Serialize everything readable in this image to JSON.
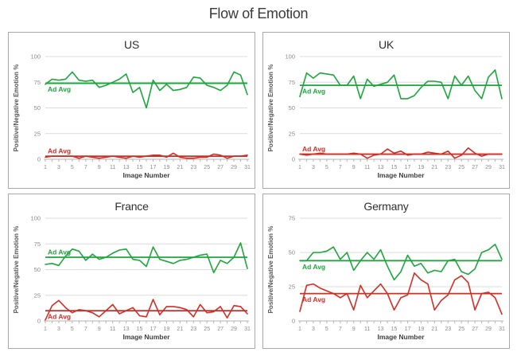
{
  "page_title": "Flow of Emotion",
  "colors": {
    "positive": "#1ea63c",
    "negative": "#d02e26",
    "grid": "#dcdcdc",
    "axis_line": "#b3b3b3",
    "tick_text": "#8a8a8a",
    "axis_label_text": "#3d3d3d",
    "ylabel_text": "#595959"
  },
  "chart_data": [
    {
      "type": "line",
      "title": "US",
      "xlabel": "Image Number",
      "ylabel": "Positive/Negative Emotion %",
      "ylim": [
        0,
        100
      ],
      "yticks": [
        0,
        25,
        50,
        75,
        100
      ],
      "xticks": [
        1,
        3,
        5,
        7,
        9,
        11,
        13,
        15,
        17,
        19,
        21,
        23,
        25,
        27,
        29,
        31
      ],
      "x_range": [
        1,
        31
      ],
      "grid": "horizontal",
      "legend_position": "none",
      "series": [
        {
          "name": "Positive",
          "color_key": "positive",
          "values": [
            73,
            78,
            77,
            78,
            85,
            77,
            76,
            77,
            70,
            72,
            75,
            78,
            83,
            65,
            70,
            50,
            77,
            67,
            73,
            67,
            68,
            70,
            80,
            79,
            72,
            70,
            67,
            72,
            85,
            82,
            63
          ],
          "avg": 74,
          "avg_label": "Ad Avg",
          "avg_label_side": "below"
        },
        {
          "name": "Negative",
          "color_key": "negative",
          "values": [
            2,
            3,
            3,
            3,
            3,
            1,
            3,
            2,
            1,
            2,
            3,
            2,
            1,
            3,
            2,
            3,
            4,
            4,
            2,
            6,
            2,
            1,
            1,
            2,
            2,
            5,
            4,
            1,
            3,
            3,
            4
          ],
          "avg": 3,
          "avg_label": "Ad Avg",
          "avg_label_side": "above"
        }
      ]
    },
    {
      "type": "line",
      "title": "UK",
      "xlabel": "Image Number",
      "ylabel": "Positive/Negative Emotion %",
      "ylim": [
        0,
        100
      ],
      "yticks": [
        0,
        25,
        50,
        75,
        100
      ],
      "xticks": [
        1,
        3,
        5,
        7,
        9,
        11,
        13,
        15,
        17,
        19,
        21,
        23,
        25,
        27,
        29,
        31
      ],
      "x_range": [
        1,
        31
      ],
      "grid": "horizontal",
      "legend_position": "none",
      "series": [
        {
          "name": "Positive",
          "color_key": "positive",
          "values": [
            61,
            84,
            79,
            84,
            83,
            82,
            72,
            72,
            81,
            59,
            78,
            71,
            73,
            75,
            82,
            59,
            59,
            62,
            70,
            76,
            76,
            75,
            59,
            81,
            72,
            81,
            67,
            59,
            80,
            87,
            59
          ],
          "avg": 72,
          "avg_label": "Ad Avg",
          "avg_label_side": "below"
        },
        {
          "name": "Negative",
          "color_key": "negative",
          "values": [
            5,
            4,
            5,
            6,
            5,
            5,
            5,
            5,
            6,
            5,
            1,
            4,
            5,
            10,
            6,
            8,
            4,
            5,
            5,
            7,
            6,
            5,
            8,
            1,
            4,
            11,
            6,
            3,
            5,
            5,
            5
          ],
          "avg": 5,
          "avg_label": "Ad Avg",
          "avg_label_side": "above"
        }
      ]
    },
    {
      "type": "line",
      "title": "France",
      "xlabel": "Image Number",
      "ylabel": "Positive/Negative Emotion %",
      "ylim": [
        0,
        100
      ],
      "yticks": [
        0,
        25,
        50,
        75,
        100
      ],
      "xticks": [
        1,
        3,
        5,
        7,
        9,
        11,
        13,
        15,
        17,
        19,
        21,
        23,
        25,
        27,
        29,
        31
      ],
      "x_range": [
        1,
        31
      ],
      "grid": "horizontal",
      "legend_position": "none",
      "series": [
        {
          "name": "Positive",
          "color_key": "positive",
          "values": [
            55,
            56,
            54,
            63,
            70,
            68,
            59,
            65,
            60,
            62,
            66,
            69,
            70,
            60,
            59,
            53,
            72,
            60,
            58,
            56,
            59,
            60,
            62,
            64,
            65,
            47,
            59,
            56,
            62,
            76,
            51
          ],
          "avg": 62,
          "avg_label": "Ad Avg",
          "avg_label_side": "above"
        },
        {
          "name": "Negative",
          "color_key": "negative",
          "values": [
            1,
            15,
            20,
            13,
            8,
            11,
            10,
            8,
            4,
            10,
            16,
            7,
            10,
            13,
            5,
            4,
            21,
            6,
            14,
            14,
            13,
            11,
            4,
            16,
            8,
            9,
            14,
            3,
            15,
            14,
            7
          ],
          "avg": 10,
          "avg_label": "Ad Avg",
          "avg_label_side": "below"
        }
      ]
    },
    {
      "type": "line",
      "title": "Germany",
      "xlabel": "Image Number",
      "ylabel": "Positive/Negative Emotion %",
      "ylim": [
        0,
        75
      ],
      "yticks": [
        0,
        25,
        50,
        75
      ],
      "xticks": [
        1,
        3,
        5,
        7,
        9,
        11,
        13,
        15,
        17,
        19,
        21,
        23,
        25,
        27,
        29,
        31
      ],
      "x_range": [
        1,
        31
      ],
      "grid": "horizontal",
      "legend_position": "none",
      "series": [
        {
          "name": "Positive",
          "color_key": "positive",
          "values": [
            44,
            44,
            50,
            50,
            51,
            54,
            45,
            50,
            37,
            44,
            50,
            45,
            52,
            40,
            30,
            36,
            48,
            40,
            42,
            35,
            37,
            36,
            44,
            45,
            36,
            34,
            38,
            50,
            52,
            56,
            45
          ],
          "avg": 44,
          "avg_label": "Ad Avg",
          "avg_label_side": "below"
        },
        {
          "name": "Negative",
          "color_key": "negative",
          "values": [
            7,
            26,
            27,
            24,
            22,
            20,
            17,
            20,
            8,
            26,
            17,
            22,
            27,
            20,
            8,
            17,
            19,
            35,
            30,
            27,
            8,
            15,
            19,
            30,
            33,
            28,
            8,
            20,
            21,
            17,
            5
          ],
          "avg": 20,
          "avg_label": "Ad Avg",
          "avg_label_side": "below"
        }
      ]
    }
  ]
}
